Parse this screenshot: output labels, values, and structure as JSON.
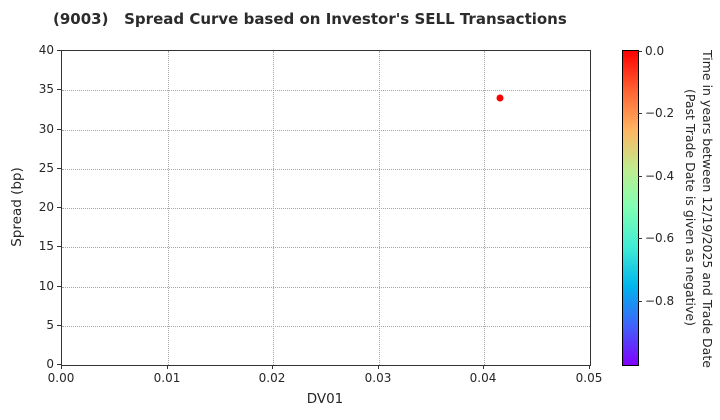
{
  "chart_data": {
    "type": "scatter",
    "title": "(9003)   Spread Curve based on Investor's SELL Transactions",
    "xlabel": "DV01",
    "ylabel": "Spread (bp)",
    "xlim": [
      0.0,
      0.05
    ],
    "ylim": [
      0,
      40
    ],
    "grid": true,
    "legend_position": "none",
    "xticks": [
      "0.00",
      "0.01",
      "0.02",
      "0.03",
      "0.04",
      "0.05"
    ],
    "yticks": [
      "0",
      "5",
      "10",
      "15",
      "20",
      "25",
      "30",
      "35",
      "40"
    ],
    "points": [
      {
        "x": 0.0415,
        "y": 34,
        "time_in_years": 0.0,
        "color": "#ff0000"
      }
    ],
    "colorbar": {
      "label_line1": "Time in years between 12/19/2025 and Trade Date",
      "label_line2": "(Past Trade Date is given as negative)",
      "ticks": [
        "0.0",
        "−0.2",
        "−0.4",
        "−0.6",
        "−0.8"
      ],
      "range_top": 0.0,
      "range_bottom": -1.0,
      "colormap": "rainbow reversed",
      "gradient": [
        {
          "color": "#ff0000",
          "pos": 0
        },
        {
          "color": "#ff6232",
          "pos": 12.5
        },
        {
          "color": "#ffb462",
          "pos": 25
        },
        {
          "color": "#bfec8e",
          "pos": 37.5
        },
        {
          "color": "#80ffb4",
          "pos": 50
        },
        {
          "color": "#40ecd4",
          "pos": 62.5
        },
        {
          "color": "#00b4ec",
          "pos": 75
        },
        {
          "color": "#4062fa",
          "pos": 87.5
        },
        {
          "color": "#8000ff",
          "pos": 100
        }
      ]
    }
  }
}
